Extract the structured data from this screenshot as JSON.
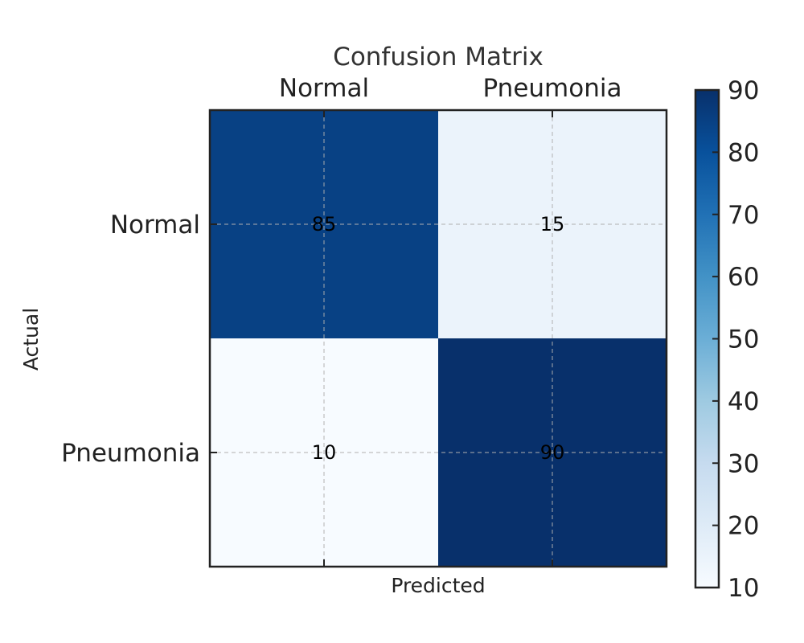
{
  "chart_data": {
    "type": "heatmap",
    "title": "Confusion Matrix",
    "xlabel": "Predicted",
    "ylabel": "Actual",
    "x_categories": [
      "Normal",
      "Pneumonia"
    ],
    "y_categories": [
      "Normal",
      "Pneumonia"
    ],
    "values": [
      [
        85,
        15
      ],
      [
        10,
        90
      ]
    ],
    "colormap": "Blues",
    "colorbar": {
      "range": [
        10,
        90
      ],
      "ticks": [
        "10",
        "20",
        "30",
        "40",
        "50",
        "60",
        "70",
        "80",
        "90"
      ]
    },
    "grid": true,
    "x_tick_position": "top"
  }
}
